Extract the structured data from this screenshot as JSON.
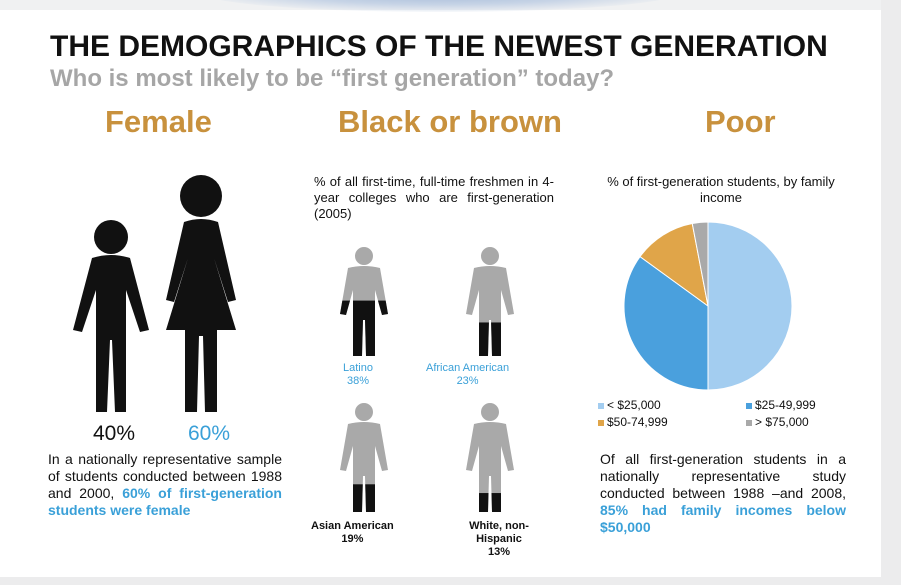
{
  "title": "THE DEMOGRAPHICS OF THE NEWEST GENERATION",
  "subtitle": "Who is most likely to be “first generation” today?",
  "colors": {
    "heading": "#c8913d",
    "accent": "#3aa0d8",
    "figure_dark": "#111111",
    "figure_gray": "#a9a9a9"
  },
  "female": {
    "heading": "Female",
    "male_pct": "40%",
    "female_pct": "60%",
    "text_plain": "In a nationally representative sample of students conducted between 1988 and 2000,",
    "text_highlight": "60% of first-generation students were female"
  },
  "race": {
    "heading": "Black or brown",
    "note": "% of all first-time, full-time freshmen in 4-year colleges who are first-generation (2005)",
    "groups": [
      {
        "name": "Latino",
        "pct": "38%",
        "value": 38
      },
      {
        "name": "African American",
        "pct": "23%",
        "value": 23
      },
      {
        "name": "Asian American",
        "pct": "19%",
        "value": 19
      },
      {
        "name": "White, non-Hispanic",
        "pct": "13%",
        "value": 13
      }
    ]
  },
  "poor": {
    "heading": "Poor",
    "chart_title": "% of first-generation students, by family income",
    "text_plain": "Of all first-generation students in a nationally representative study conducted between 1988 –and 2008,",
    "text_highlight": "85% had family incomes below $50,000"
  },
  "chart_data": [
    {
      "type": "bar",
      "title": "% of all first-time, full-time freshmen in 4-year colleges who are first-generation (2005)",
      "categories": [
        "Latino",
        "African American",
        "Asian American",
        "White, non-Hispanic"
      ],
      "values": [
        38,
        23,
        19,
        13
      ]
    },
    {
      "type": "pie",
      "title": "% of first-generation students, by family income",
      "labels": [
        "< $25,000",
        "$25-49,999",
        "$50-74,999",
        "> $75,000"
      ],
      "values": [
        50,
        35,
        12,
        3
      ],
      "colors": [
        "#a3cdf0",
        "#4aa0dd",
        "#e0a549",
        "#a9a9a9"
      ],
      "legend": "bottom"
    }
  ]
}
